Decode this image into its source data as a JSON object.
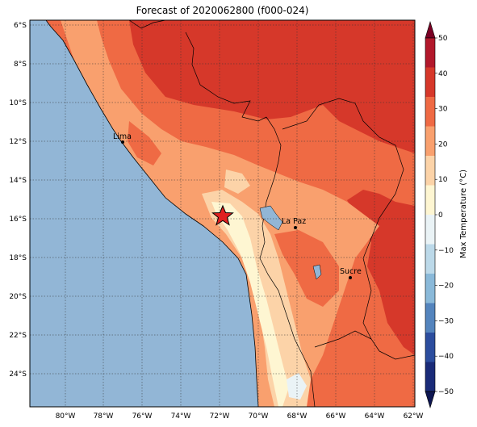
{
  "title": "Forecast of 2020062800 (f000-024)",
  "lat_labels": [
    "6°S",
    "8°S",
    "10°S",
    "12°S",
    "14°S",
    "16°S",
    "18°S",
    "20°S",
    "22°S",
    "24°S"
  ],
  "lon_labels": [
    "80°W",
    "78°W",
    "76°W",
    "74°W",
    "72°W",
    "70°W",
    "68°W",
    "66°W",
    "64°W",
    "62°W"
  ],
  "colorbar": {
    "label": "Max Temperature (°C)",
    "ticks": [
      "50",
      "40",
      "30",
      "20",
      "10",
      "0",
      "−10",
      "−20",
      "−30",
      "−40",
      "−50"
    ],
    "colors": [
      "#7a0024",
      "#b2182b",
      "#d6382a",
      "#ef6a44",
      "#f9a06e",
      "#fcd3a8",
      "#fef6d2",
      "#eaf3f6",
      "#bcd9e9",
      "#8ab9d9",
      "#5484bd",
      "#2c4d9e",
      "#1a2b78",
      "#0e1652"
    ]
  },
  "cities": [
    {
      "name": "Lima"
    },
    {
      "name": "La Paz"
    },
    {
      "name": "Sucre"
    }
  ],
  "ocean_color": "#92b6d6"
}
